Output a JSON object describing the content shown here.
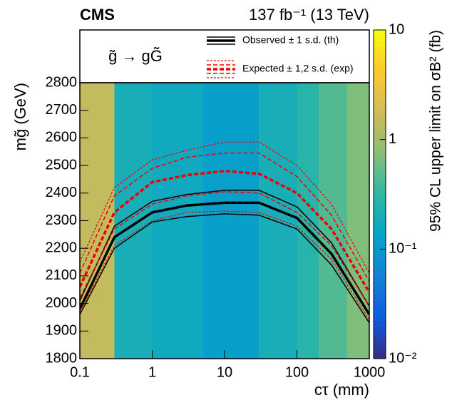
{
  "chart_data": {
    "type": "line",
    "experiment": "CMS",
    "luminosity": "137 fb⁻¹ (13 TeV)",
    "process": "g̃ → gG̃",
    "x_label": "cτ (mm)",
    "y_label": "mg̃ (GeV)",
    "z_label": "95% CL upper limit on σB² (fb)",
    "x": [
      0.1,
      0.3,
      1,
      3,
      10,
      30,
      100,
      300,
      1000
    ],
    "series": [
      {
        "name": "Observed ± 1 s.d. (th)",
        "color": "#000000",
        "values": [
          1980,
          2240,
          2330,
          2355,
          2365,
          2365,
          2310,
          2180,
          1960
        ],
        "plus1": [
          2010,
          2280,
          2370,
          2395,
          2410,
          2410,
          2350,
          2220,
          1990
        ],
        "minus1": [
          1960,
          2200,
          2295,
          2315,
          2325,
          2320,
          2270,
          2140,
          1930
        ]
      },
      {
        "name": "Expected ± 1,2 s.d. (exp)",
        "color": "#ee0000",
        "values": [
          2060,
          2330,
          2440,
          2465,
          2480,
          2470,
          2400,
          2270,
          2040
        ],
        "plus1": [
          2110,
          2390,
          2490,
          2530,
          2545,
          2545,
          2460,
          2320,
          2080
        ],
        "minus1": [
          2020,
          2270,
          2360,
          2390,
          2405,
          2400,
          2330,
          2210,
          1990
        ],
        "plus2": [
          2150,
          2420,
          2520,
          2555,
          2585,
          2585,
          2500,
          2360,
          2110
        ],
        "minus2": [
          1970,
          2210,
          2300,
          2330,
          2335,
          2330,
          2280,
          2160,
          1940
        ]
      }
    ],
    "heatmap": {
      "bins": [
        0.1,
        0.3,
        1,
        5,
        30,
        100,
        200,
        500,
        1000
      ],
      "values": [
        1.5,
        0.2,
        0.17,
        0.12,
        0.2,
        0.28,
        0.45,
        0.7
      ]
    },
    "xlim": [
      0.1,
      1000
    ],
    "xticks": [
      0.1,
      1,
      10,
      100,
      1000
    ],
    "xlog": true,
    "ylim": [
      1800,
      2800
    ],
    "yticks": [
      1800,
      1900,
      2000,
      2100,
      2200,
      2300,
      2400,
      2500,
      2600,
      2700,
      2800
    ],
    "zlim": [
      0.01,
      10
    ],
    "zlog": true,
    "zticks": [
      {
        "value": 0.01,
        "label": "10⁻²"
      },
      {
        "value": 0.1,
        "label": "10⁻¹"
      },
      {
        "value": 1,
        "label": "1"
      },
      {
        "value": 10,
        "label": "10"
      }
    ]
  }
}
